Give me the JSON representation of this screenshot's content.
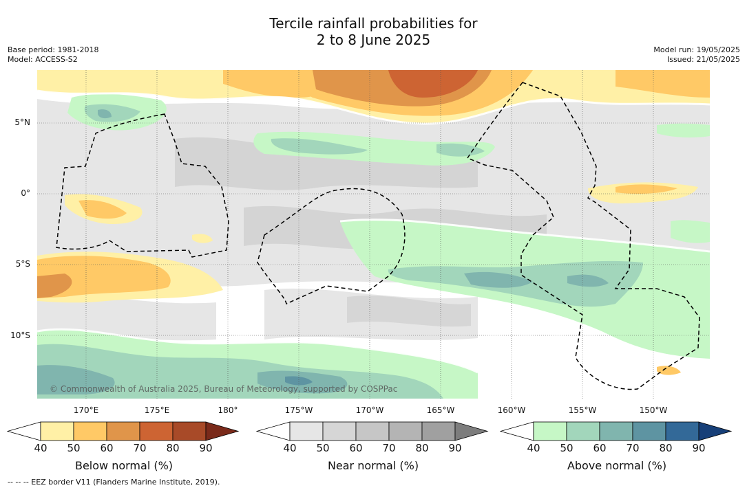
{
  "title_line1": "Tercile rainfall probabilities for",
  "title_line2": "2 to 8 June 2025",
  "base_period": "Base period: 1981-2018",
  "model": "Model: ACCESS-S2",
  "model_run": "Model run: 19/05/2025",
  "issued": "Issued: 21/05/2025",
  "copyright": "© Commonwealth of Australia 2025, Bureau of Meteorology, supported by COSPPac",
  "lat_labels": [
    "5°N",
    "0°",
    "5°S",
    "10°S"
  ],
  "lon_labels": [
    "170°E",
    "175°E",
    "180°",
    "175°W",
    "170°W",
    "165°W",
    "160°W",
    "155°W",
    "150°W"
  ],
  "colorbars": [
    {
      "title": "Below normal (%)",
      "ticks": [
        "40",
        "50",
        "60",
        "70",
        "80",
        "90"
      ],
      "colors": [
        "#fff0a6",
        "#ffc966",
        "#e0954a",
        "#cd6433",
        "#a84a28",
        "#7a2a1a"
      ]
    },
    {
      "title": "Near normal (%)",
      "ticks": [
        "40",
        "50",
        "60",
        "70",
        "80",
        "90"
      ],
      "colors": [
        "#e6e6e6",
        "#d6d6d6",
        "#c6c6c6",
        "#b4b4b4",
        "#a0a0a0",
        "#7d7d7d"
      ]
    },
    {
      "title": "Above normal (%)",
      "ticks": [
        "40",
        "50",
        "60",
        "70",
        "80",
        "90"
      ],
      "colors": [
        "#c6f7c6",
        "#a2d6bb",
        "#80b5ae",
        "#5e94a2",
        "#336998",
        "#173f78"
      ]
    }
  ],
  "eez_note": "--  --  -- EEZ border V11 (Flanders Marine Institute, 2019)."
}
